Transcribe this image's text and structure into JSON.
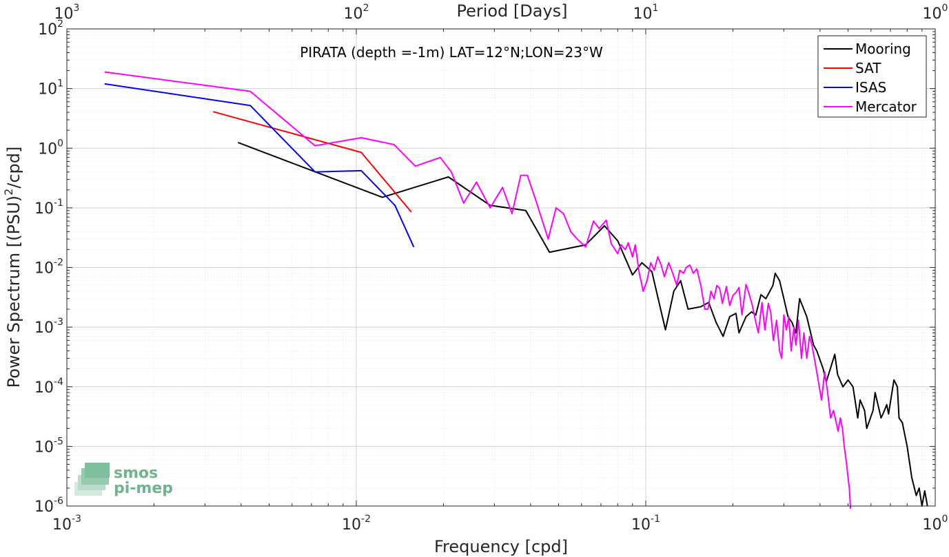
{
  "chart_data": {
    "type": "line",
    "title": "PIRATA (depth =-1m) LAT=12°N;LON=23°W",
    "xlabel": "Frequency [cpd]",
    "ylabel": "Power Spectrum [(PSU)²/cpd]",
    "ylabel_parts": {
      "before": "Power Spectrum [(PSU)",
      "sup": "2",
      "after": "/cpd]"
    },
    "top_xlabel": "Period [Days]",
    "x_scale": "log",
    "y_scale": "log",
    "xlim": [
      0.001,
      1
    ],
    "ylim": [
      1e-06,
      100
    ],
    "grid": true,
    "legend_position": "top-right",
    "x_ticks": [
      {
        "base": "10",
        "exp": "-3"
      },
      {
        "base": "10",
        "exp": "-2"
      },
      {
        "base": "10",
        "exp": "-1"
      },
      {
        "base": "10",
        "exp": "0"
      }
    ],
    "y_ticks": [
      {
        "base": "10",
        "exp": "-6"
      },
      {
        "base": "10",
        "exp": "-5"
      },
      {
        "base": "10",
        "exp": "-4"
      },
      {
        "base": "10",
        "exp": "-3"
      },
      {
        "base": "10",
        "exp": "-2"
      },
      {
        "base": "10",
        "exp": "-1"
      },
      {
        "base": "10",
        "exp": "0"
      },
      {
        "base": "10",
        "exp": "1"
      },
      {
        "base": "10",
        "exp": "2"
      }
    ],
    "top_ticks": [
      {
        "base": "10",
        "exp": "3"
      },
      {
        "base": "10",
        "exp": "2"
      },
      {
        "base": "10",
        "exp": "1"
      },
      {
        "base": "10",
        "exp": "0"
      }
    ],
    "series": [
      {
        "name": "Mooring",
        "color": "#000000",
        "points": [
          [
            0.0039,
            1.25
          ],
          [
            0.0123,
            0.15
          ],
          [
            0.0208,
            0.33
          ],
          [
            0.029,
            0.11
          ],
          [
            0.0385,
            0.09
          ],
          [
            0.0465,
            0.018
          ],
          [
            0.062,
            0.024
          ],
          [
            0.072,
            0.05
          ],
          [
            0.08,
            0.028
          ],
          [
            0.09,
            0.0075
          ],
          [
            0.097,
            0.012
          ],
          [
            0.105,
            0.0085
          ],
          [
            0.117,
            0.0009
          ],
          [
            0.125,
            0.004
          ],
          [
            0.132,
            0.006
          ],
          [
            0.14,
            0.002
          ],
          [
            0.155,
            0.0022
          ],
          [
            0.165,
            0.0026
          ],
          [
            0.175,
            0.0012
          ],
          [
            0.185,
            0.0007
          ],
          [
            0.195,
            0.0015
          ],
          [
            0.205,
            0.0017
          ],
          [
            0.21,
            0.0008
          ],
          [
            0.222,
            0.0015
          ],
          [
            0.232,
            0.0018
          ],
          [
            0.24,
            0.0016
          ],
          [
            0.25,
            0.0035
          ],
          [
            0.26,
            0.003
          ],
          [
            0.275,
            0.005
          ],
          [
            0.28,
            0.008
          ],
          [
            0.29,
            0.006
          ],
          [
            0.3,
            0.003
          ],
          [
            0.31,
            0.0015
          ],
          [
            0.32,
            0.0012
          ],
          [
            0.33,
            0.0008
          ],
          [
            0.34,
            0.003
          ],
          [
            0.36,
            0.0015
          ],
          [
            0.38,
            0.0005
          ],
          [
            0.39,
            0.0004
          ],
          [
            0.41,
            0.0002
          ],
          [
            0.42,
            0.00012
          ],
          [
            0.45,
            0.00035
          ],
          [
            0.46,
            0.00016
          ],
          [
            0.48,
            0.0001
          ],
          [
            0.5,
            0.00013
          ],
          [
            0.52,
            0.0001
          ],
          [
            0.54,
            3e-05
          ],
          [
            0.55,
            6e-05
          ],
          [
            0.57,
            4e-05
          ],
          [
            0.58,
            2e-05
          ],
          [
            0.61,
            4e-05
          ],
          [
            0.62,
            8e-05
          ],
          [
            0.65,
            3e-05
          ],
          [
            0.66,
            3.5e-05
          ],
          [
            0.68,
            5e-05
          ],
          [
            0.69,
            3.5e-05
          ],
          [
            0.72,
            0.00013
          ],
          [
            0.74,
            0.0001
          ],
          [
            0.75,
            3e-05
          ],
          [
            0.77,
            2.5e-05
          ],
          [
            0.8,
            1e-05
          ],
          [
            0.83,
            3e-06
          ],
          [
            0.86,
            1.5e-06
          ],
          [
            0.88,
            2e-06
          ],
          [
            0.9,
            1e-06
          ],
          [
            0.92,
            1.8e-06
          ],
          [
            0.94,
            1e-06
          ]
        ]
      },
      {
        "name": "SAT",
        "color": "#ff0000",
        "points": [
          [
            0.0032,
            4.1
          ],
          [
            0.0104,
            0.85
          ],
          [
            0.0155,
            0.085
          ]
        ]
      },
      {
        "name": "ISAS",
        "color": "#0000ff",
        "points": [
          [
            0.00135,
            12
          ],
          [
            0.0043,
            5.2
          ],
          [
            0.0072,
            0.4
          ],
          [
            0.0104,
            0.42
          ],
          [
            0.0136,
            0.11
          ],
          [
            0.0158,
            0.022
          ]
        ]
      },
      {
        "name": "Mercator",
        "color": "#ff00ff",
        "points": [
          [
            0.00135,
            19
          ],
          [
            0.0043,
            9
          ],
          [
            0.0072,
            1.1
          ],
          [
            0.0104,
            1.5
          ],
          [
            0.0135,
            1.15
          ],
          [
            0.016,
            0.5
          ],
          [
            0.0195,
            0.7
          ],
          [
            0.0213,
            0.4
          ],
          [
            0.0235,
            0.12
          ],
          [
            0.026,
            0.27
          ],
          [
            0.029,
            0.1
          ],
          [
            0.032,
            0.22
          ],
          [
            0.0345,
            0.08
          ],
          [
            0.037,
            0.35
          ],
          [
            0.039,
            0.35
          ],
          [
            0.042,
            0.12
          ],
          [
            0.046,
            0.03
          ],
          [
            0.049,
            0.1
          ],
          [
            0.052,
            0.08
          ],
          [
            0.055,
            0.04
          ],
          [
            0.058,
            0.03
          ],
          [
            0.062,
            0.022
          ],
          [
            0.066,
            0.06
          ],
          [
            0.069,
            0.045
          ],
          [
            0.073,
            0.062
          ],
          [
            0.076,
            0.025
          ],
          [
            0.08,
            0.017
          ],
          [
            0.082,
            0.024
          ],
          [
            0.085,
            0.02
          ],
          [
            0.087,
            0.026
          ],
          [
            0.09,
            0.015
          ],
          [
            0.092,
            0.024
          ],
          [
            0.095,
            0.008
          ],
          [
            0.098,
            0.004
          ],
          [
            0.101,
            0.006
          ],
          [
            0.104,
            0.012
          ],
          [
            0.107,
            0.009
          ],
          [
            0.11,
            0.015
          ],
          [
            0.113,
            0.011
          ],
          [
            0.116,
            0.007
          ],
          [
            0.12,
            0.012
          ],
          [
            0.124,
            0.008
          ],
          [
            0.128,
            0.005
          ],
          [
            0.131,
            0.009
          ],
          [
            0.135,
            0.008
          ],
          [
            0.138,
            0.01
          ],
          [
            0.142,
            0.011
          ],
          [
            0.146,
            0.008
          ],
          [
            0.15,
            0.0095
          ],
          [
            0.155,
            0.005
          ],
          [
            0.16,
            0.002
          ],
          [
            0.164,
            0.002
          ],
          [
            0.168,
            0.004
          ],
          [
            0.172,
            0.003
          ],
          [
            0.176,
            0.005
          ],
          [
            0.18,
            0.0045
          ],
          [
            0.184,
            0.0025
          ],
          [
            0.19,
            0.0048
          ],
          [
            0.195,
            0.0023
          ],
          [
            0.2,
            0.0034
          ],
          [
            0.205,
            0.0038
          ],
          [
            0.21,
            0.0046
          ],
          [
            0.215,
            0.0016
          ],
          [
            0.222,
            0.0052
          ],
          [
            0.228,
            0.0035
          ],
          [
            0.233,
            0.0024
          ],
          [
            0.24,
            0.0012
          ],
          [
            0.245,
            0.0008
          ],
          [
            0.252,
            0.0026
          ],
          [
            0.258,
            0.0009
          ],
          [
            0.265,
            0.0025
          ],
          [
            0.27,
            0.0018
          ],
          [
            0.276,
            0.0006
          ],
          [
            0.283,
            0.0013
          ],
          [
            0.29,
            0.0004
          ],
          [
            0.295,
            0.0003
          ],
          [
            0.3,
            0.0016
          ],
          [
            0.306,
            0.0009
          ],
          [
            0.312,
            0.0015
          ],
          [
            0.318,
            0.0004
          ],
          [
            0.325,
            0.001
          ],
          [
            0.33,
            0.0005
          ],
          [
            0.337,
            0.0013
          ],
          [
            0.345,
            0.0003
          ],
          [
            0.352,
            0.0008
          ],
          [
            0.36,
            0.0003
          ],
          [
            0.368,
            0.0007
          ],
          [
            0.375,
            0.0005
          ],
          [
            0.385,
            0.00025
          ],
          [
            0.395,
            0.00012
          ],
          [
            0.405,
            6e-05
          ],
          [
            0.415,
            0.00018
          ],
          [
            0.425,
            8e-05
          ],
          [
            0.435,
            3e-05
          ],
          [
            0.445,
            4e-05
          ],
          [
            0.455,
            2.5e-05
          ],
          [
            0.462,
            1.8e-05
          ],
          [
            0.47,
            3e-05
          ],
          [
            0.478,
            2e-05
          ],
          [
            0.485,
            1e-05
          ],
          [
            0.492,
            6e-06
          ],
          [
            0.5,
            3e-06
          ],
          [
            0.505,
            2e-06
          ],
          [
            0.51,
            9e-07
          ]
        ]
      }
    ]
  },
  "logo": {
    "line1": "smos",
    "line2": "pi-mep"
  }
}
